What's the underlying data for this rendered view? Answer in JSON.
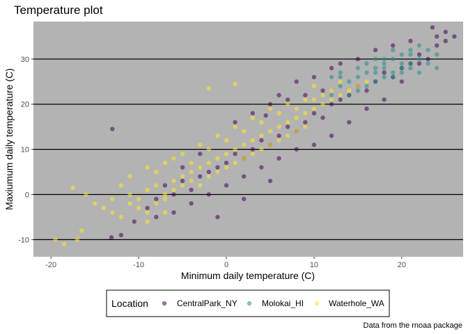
{
  "chart_data": {
    "type": "scatter",
    "title": "Temperature plot",
    "xlabel": "Minimum daily temperature (C)",
    "ylabel": "Maxiumum daily temperature (C)",
    "caption": "Data from the rnoaa package",
    "xlim": [
      -22,
      27
    ],
    "ylim": [
      -13.8,
      38.3
    ],
    "x_ticks": [
      -20,
      -10,
      0,
      10,
      20
    ],
    "y_ticks": [
      -10,
      0,
      10,
      20,
      30
    ],
    "x_tick_labels": [
      "-20",
      "-10",
      "0",
      "10",
      "20"
    ],
    "y_tick_labels": [
      "-10",
      "0",
      "10",
      "20",
      "30"
    ],
    "grid": "horizontal major lines only",
    "panel_background": "#b3b3b3",
    "legend": {
      "title": "Location",
      "position": "bottom",
      "entries": [
        "CentralPark_NY",
        "Molokai_HI",
        "Waterhole_WA"
      ]
    },
    "series": [
      {
        "name": "CentralPark_NY",
        "color": "#440154",
        "points": [
          [
            -13,
            14.5
          ],
          [
            -13.1,
            -9.5
          ],
          [
            -12,
            -9
          ],
          [
            -10.5,
            -6
          ],
          [
            -9,
            -3
          ],
          [
            -8,
            -1
          ],
          [
            -7,
            2
          ],
          [
            -6,
            0
          ],
          [
            -5,
            3
          ],
          [
            -4,
            1
          ],
          [
            -3,
            4
          ],
          [
            -2,
            5
          ],
          [
            -1,
            6
          ],
          [
            0,
            7
          ],
          [
            1,
            9
          ],
          [
            2,
            8
          ],
          [
            3,
            10
          ],
          [
            4,
            12
          ],
          [
            5,
            11
          ],
          [
            6,
            13
          ],
          [
            7,
            15
          ],
          [
            8,
            14
          ],
          [
            9,
            16
          ],
          [
            10,
            18
          ],
          [
            11,
            17
          ],
          [
            12,
            20
          ],
          [
            13,
            21
          ],
          [
            14,
            22
          ],
          [
            15,
            24
          ],
          [
            16,
            23
          ],
          [
            17,
            25
          ],
          [
            18,
            27
          ],
          [
            19,
            26
          ],
          [
            20,
            28
          ],
          [
            21,
            29
          ],
          [
            22,
            31
          ],
          [
            23,
            30
          ],
          [
            24,
            33
          ],
          [
            25,
            34
          ],
          [
            26,
            35
          ],
          [
            25,
            36
          ],
          [
            23.5,
            37
          ],
          [
            22,
            29
          ],
          [
            20,
            25
          ],
          [
            18,
            21
          ],
          [
            16,
            19
          ],
          [
            14,
            16
          ],
          [
            12,
            13
          ],
          [
            10,
            11
          ],
          [
            8,
            10
          ],
          [
            6,
            8
          ],
          [
            4,
            6
          ],
          [
            2,
            4
          ],
          [
            0,
            2
          ],
          [
            -2,
            0
          ],
          [
            -4,
            -2
          ],
          [
            -6,
            -4
          ],
          [
            -8,
            -5
          ],
          [
            3,
            18
          ],
          [
            4.5,
            17.5
          ],
          [
            6,
            22
          ],
          [
            8,
            25
          ],
          [
            10,
            26
          ],
          [
            12,
            28
          ],
          [
            13,
            29
          ],
          [
            15,
            30
          ],
          [
            17,
            32
          ],
          [
            19,
            33
          ],
          [
            21,
            34
          ],
          [
            24,
            35
          ],
          [
            -3,
            9
          ],
          [
            -5,
            6
          ],
          [
            1,
            16
          ],
          [
            5,
            20
          ],
          [
            7,
            21
          ],
          [
            9,
            22
          ],
          [
            11,
            23
          ],
          [
            -1,
            -5
          ],
          [
            2,
            -1
          ],
          [
            5,
            3
          ]
        ]
      },
      {
        "name": "Molokai_HI",
        "color": "#21908c",
        "points": [
          [
            12,
            22
          ],
          [
            13,
            24
          ],
          [
            14,
            25
          ],
          [
            15,
            26
          ],
          [
            16,
            27
          ],
          [
            17,
            28
          ],
          [
            18,
            29
          ],
          [
            19,
            30
          ],
          [
            20,
            31
          ],
          [
            21,
            32
          ],
          [
            22,
            33
          ],
          [
            23,
            32
          ],
          [
            24,
            31
          ],
          [
            22,
            30
          ],
          [
            21,
            29
          ],
          [
            20,
            28
          ],
          [
            19,
            27
          ],
          [
            18,
            26
          ],
          [
            17,
            25
          ],
          [
            16,
            24
          ],
          [
            15,
            23
          ],
          [
            14,
            22
          ],
          [
            13,
            26
          ],
          [
            17,
            30
          ],
          [
            19,
            32
          ],
          [
            21,
            28
          ],
          [
            23,
            29
          ],
          [
            18,
            28
          ],
          [
            20,
            27
          ],
          [
            16,
            29
          ],
          [
            22,
            27
          ],
          [
            24,
            28
          ],
          [
            20,
            29
          ],
          [
            18,
            30
          ],
          [
            17,
            27
          ],
          [
            15,
            28
          ],
          [
            19,
            26
          ],
          [
            21,
            31
          ],
          [
            13,
            27
          ],
          [
            12,
            26
          ]
        ]
      },
      {
        "name": "Waterhole_WA",
        "color": "#fde725",
        "points": [
          [
            -19.5,
            -10
          ],
          [
            -18.5,
            -11
          ],
          [
            -17,
            -10
          ],
          [
            -16.5,
            -8
          ],
          [
            -17.5,
            1.5
          ],
          [
            -16,
            0
          ],
          [
            -15,
            -2
          ],
          [
            -14,
            -3
          ],
          [
            -13,
            -4
          ],
          [
            -12,
            -5
          ],
          [
            -12,
            2
          ],
          [
            -11,
            0
          ],
          [
            -10,
            -1
          ],
          [
            -9,
            1
          ],
          [
            -8,
            2
          ],
          [
            -7,
            0
          ],
          [
            -6,
            3
          ],
          [
            -5,
            4
          ],
          [
            -4,
            5
          ],
          [
            -3,
            6
          ],
          [
            -2,
            7
          ],
          [
            -1,
            8
          ],
          [
            0,
            9
          ],
          [
            1,
            10
          ],
          [
            2,
            11
          ],
          [
            3,
            12
          ],
          [
            4,
            13
          ],
          [
            5,
            14
          ],
          [
            6,
            15
          ],
          [
            7,
            16
          ],
          [
            8,
            17
          ],
          [
            9,
            18
          ],
          [
            10,
            19
          ],
          [
            11,
            20
          ],
          [
            12,
            21
          ],
          [
            13,
            22
          ],
          [
            14,
            23
          ],
          [
            13,
            25
          ],
          [
            15,
            24
          ],
          [
            16,
            25
          ],
          [
            -10,
            -3
          ],
          [
            -9,
            -4
          ],
          [
            -8,
            -2
          ],
          [
            -7,
            -1
          ],
          [
            -6,
            1
          ],
          [
            -5,
            2
          ],
          [
            -4,
            3
          ],
          [
            -3,
            2
          ],
          [
            -2,
            4
          ],
          [
            -1,
            5
          ],
          [
            0,
            6
          ],
          [
            1,
            7
          ],
          [
            2,
            8
          ],
          [
            3,
            9
          ],
          [
            4,
            10
          ],
          [
            5,
            11
          ],
          [
            6,
            12
          ],
          [
            7,
            13
          ],
          [
            8,
            14
          ],
          [
            9,
            15
          ],
          [
            -11,
            4
          ],
          [
            -9,
            6
          ],
          [
            -7,
            7
          ],
          [
            -5,
            9
          ],
          [
            -3,
            11
          ],
          [
            -1,
            13
          ],
          [
            1,
            15
          ],
          [
            3,
            17
          ],
          [
            5,
            19
          ],
          [
            7,
            20
          ],
          [
            9,
            21
          ],
          [
            11,
            22
          ],
          [
            10,
            24
          ],
          [
            1,
            24.5
          ],
          [
            -2,
            23.5
          ],
          [
            -8,
            5
          ],
          [
            -6,
            8
          ],
          [
            -4,
            7
          ],
          [
            -2,
            10
          ],
          [
            0,
            12
          ],
          [
            2,
            14
          ],
          [
            4,
            16
          ],
          [
            6,
            18
          ],
          [
            8,
            19
          ],
          [
            10,
            21
          ],
          [
            12,
            23
          ],
          [
            -13,
            -1
          ],
          [
            -11,
            -2
          ],
          [
            -9,
            -6
          ],
          [
            -7,
            -4
          ]
        ]
      }
    ]
  }
}
